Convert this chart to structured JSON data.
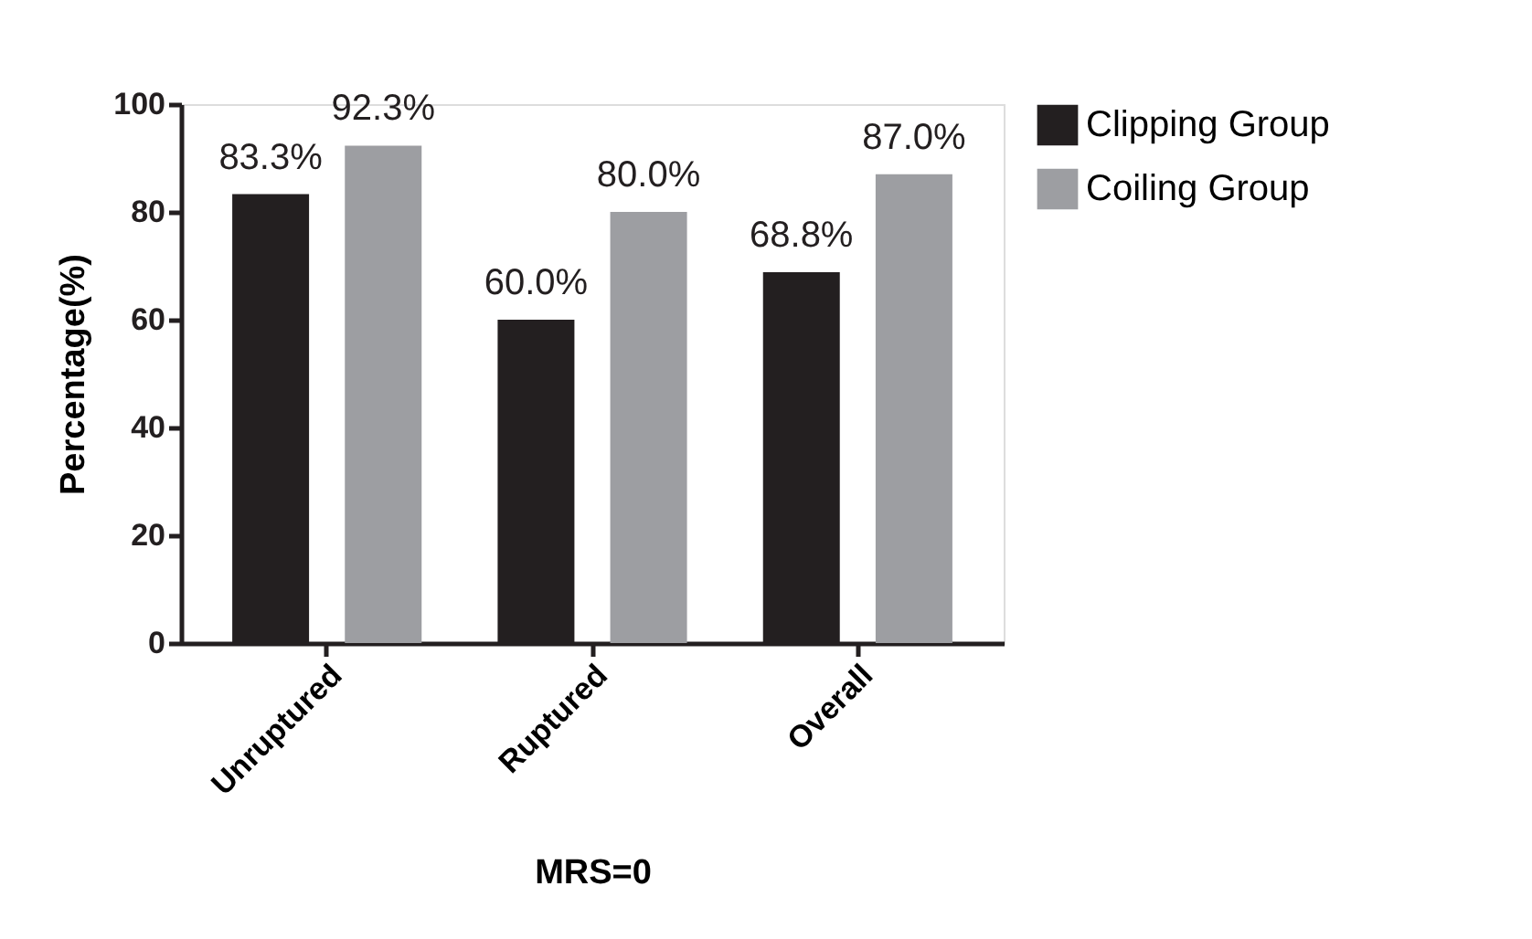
{
  "chart_data": {
    "type": "bar",
    "xlabel": "MRS=0",
    "ylabel": "Percentage(%)",
    "categories": [
      "Unruptured",
      "Ruptured",
      "Overall"
    ],
    "series": [
      {
        "name": "Clipping Group",
        "color": "#231f20",
        "values": [
          83.3,
          60.0,
          68.8
        ],
        "value_labels": [
          "83.3%",
          "60.0%",
          "68.8%"
        ]
      },
      {
        "name": "Coiling Group",
        "color": "#9d9ea2",
        "values": [
          92.3,
          80.0,
          87.0
        ],
        "value_labels": [
          "92.3%",
          "80.0%",
          "87.0%"
        ]
      }
    ],
    "ylim": [
      0,
      100
    ],
    "yticks": [
      0,
      20,
      40,
      60,
      80,
      100
    ],
    "grid": false,
    "legend": "top right"
  }
}
